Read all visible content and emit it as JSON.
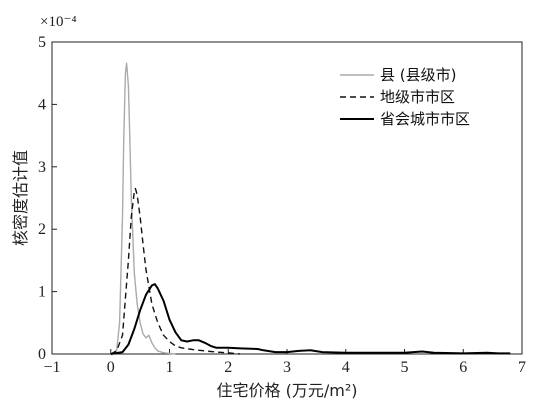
{
  "chart_data": {
    "type": "line",
    "title": "",
    "xlabel": "住宅价格 (万元/m²)",
    "ylabel": "核密度估计值",
    "y_exponent": "×10⁻⁴",
    "xlim": [
      -1,
      7
    ],
    "ylim": [
      0,
      5
    ],
    "x_ticks": [
      -1,
      0,
      1,
      2,
      3,
      4,
      5,
      6,
      7
    ],
    "y_ticks": [
      0,
      1,
      2,
      3,
      4,
      5
    ],
    "grid": false,
    "legend_position": "top-right",
    "series": [
      {
        "name": "县 (县级市)",
        "color": "#aaaaaa",
        "style": "solid",
        "x": [
          0.0,
          0.1,
          0.15,
          0.2,
          0.22,
          0.25,
          0.27,
          0.3,
          0.32,
          0.35,
          0.4,
          0.45,
          0.5,
          0.55,
          0.6,
          0.65,
          0.7,
          0.75,
          0.8,
          0.9,
          1.0,
          1.1
        ],
        "y": [
          0.0,
          0.05,
          0.5,
          2.2,
          3.4,
          4.5,
          4.66,
          4.3,
          3.6,
          2.5,
          1.3,
          0.8,
          0.5,
          0.32,
          0.26,
          0.3,
          0.18,
          0.1,
          0.05,
          0.02,
          0.01,
          0.0
        ]
      },
      {
        "name": "地级市市区",
        "color": "#111111",
        "style": "dashed",
        "x": [
          0.0,
          0.1,
          0.2,
          0.3,
          0.35,
          0.4,
          0.42,
          0.45,
          0.5,
          0.55,
          0.6,
          0.7,
          0.8,
          0.9,
          1.0,
          1.1,
          1.2,
          1.4,
          1.6,
          1.8,
          2.0,
          2.2
        ],
        "y": [
          0.0,
          0.05,
          0.3,
          1.5,
          2.2,
          2.6,
          2.65,
          2.55,
          2.2,
          1.75,
          1.35,
          0.8,
          0.5,
          0.3,
          0.2,
          0.13,
          0.1,
          0.07,
          0.05,
          0.03,
          0.02,
          0.0
        ]
      },
      {
        "name": "省会城市市区",
        "color": "#000000",
        "style": "solid",
        "x": [
          0.0,
          0.2,
          0.3,
          0.4,
          0.5,
          0.6,
          0.7,
          0.75,
          0.8,
          0.9,
          1.0,
          1.1,
          1.2,
          1.3,
          1.4,
          1.5,
          1.6,
          1.7,
          1.8,
          2.0,
          2.2,
          2.5,
          2.6,
          2.8,
          3.0,
          3.2,
          3.4,
          3.6,
          4.0,
          4.5,
          5.0,
          5.3,
          5.5,
          6.0,
          6.4,
          6.6,
          6.8
        ],
        "y": [
          0.0,
          0.03,
          0.15,
          0.4,
          0.7,
          0.95,
          1.1,
          1.12,
          1.05,
          0.85,
          0.55,
          0.35,
          0.22,
          0.2,
          0.22,
          0.22,
          0.18,
          0.13,
          0.1,
          0.1,
          0.09,
          0.08,
          0.06,
          0.03,
          0.03,
          0.05,
          0.06,
          0.03,
          0.02,
          0.02,
          0.02,
          0.04,
          0.02,
          0.01,
          0.02,
          0.01,
          0.01
        ]
      }
    ]
  }
}
